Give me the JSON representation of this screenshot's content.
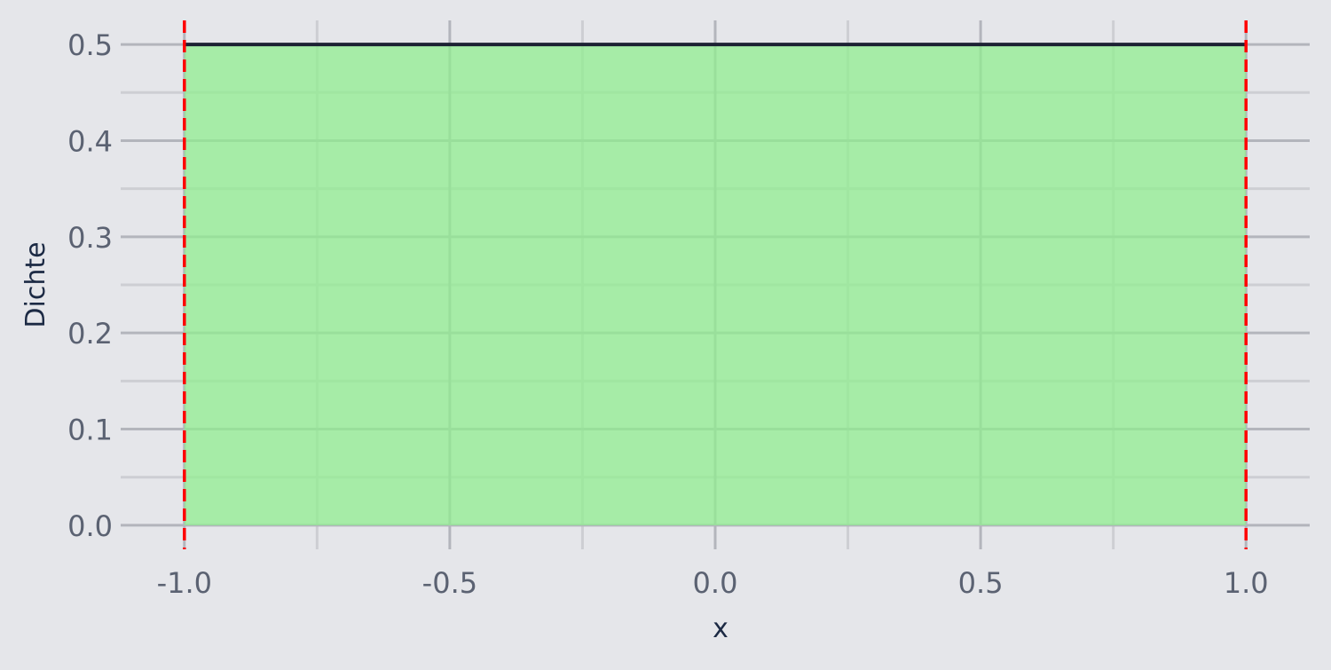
{
  "chart_data": {
    "type": "area",
    "title": "",
    "xlabel": "x",
    "ylabel": "Dichte",
    "xlim": [
      -1.12,
      1.12
    ],
    "ylim": [
      -0.025,
      0.525
    ],
    "x_ticks": [
      -1.0,
      -0.5,
      0.0,
      0.5,
      1.0
    ],
    "x_tick_labels": [
      "-1.0",
      "-0.5",
      "0.0",
      "0.5",
      "1.0"
    ],
    "x_minor_ticks": [
      -0.75,
      -0.25,
      0.25,
      0.75
    ],
    "y_ticks": [
      0.0,
      0.1,
      0.2,
      0.3,
      0.4,
      0.5
    ],
    "y_tick_labels": [
      "0.0",
      "0.1",
      "0.2",
      "0.3",
      "0.4",
      "0.5"
    ],
    "y_minor_ticks": [
      0.05,
      0.15,
      0.25,
      0.35,
      0.45
    ],
    "grid": true,
    "series": [
      {
        "x": [
          -1.0,
          1.0
        ],
        "y": [
          0.5,
          0.5
        ]
      }
    ],
    "fill": {
      "from": -1.0,
      "to": 1.0,
      "y": 0.5
    },
    "vlines": [
      -1.0,
      1.0
    ],
    "colors": {
      "background": "#e5e6ea",
      "grid_major": "#b3b5bc",
      "grid_minor": "#cdced3",
      "fill": "#90ee90",
      "line": "#1c2233",
      "vline": "#ff0000",
      "tick_label": "#5b6272",
      "axis_title": "#1c2a44"
    }
  }
}
